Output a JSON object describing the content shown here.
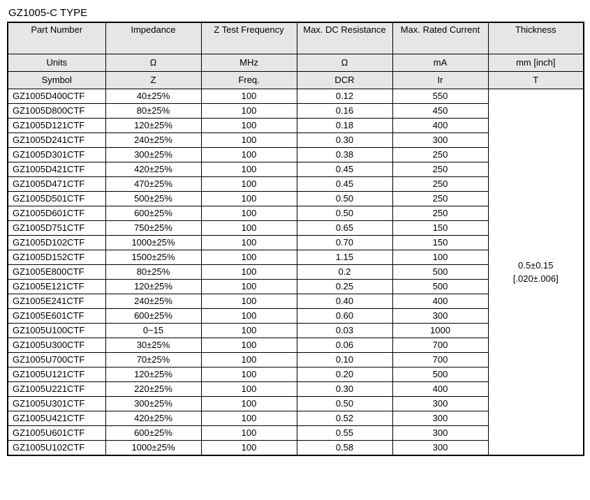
{
  "title": "GZ1005-C TYPE",
  "headers": {
    "col1": "Part Number",
    "col2": "Impedance",
    "col3": "Z Test Frequency",
    "col4": "Max. DC Resistance",
    "col5": "Max. Rated Current",
    "col6": "Thickness"
  },
  "units": {
    "label": "Units",
    "col2": "Ω",
    "col3": "MHz",
    "col4": "Ω",
    "col5": "mA",
    "col6": "mm [inch]"
  },
  "symbols": {
    "label": "Symbol",
    "col2": "Z",
    "col3": "Freq.",
    "col4": "DCR",
    "col5": "Ir",
    "col6": "T"
  },
  "thickness": {
    "line1": "0.5±0.15",
    "line2": "[.020±.006]"
  },
  "rows": [
    {
      "pn": "GZ1005D400CTF",
      "imp": "40±25%",
      "freq": "100",
      "dcr": "0.12",
      "ir": "550"
    },
    {
      "pn": "GZ1005D800CTF",
      "imp": "80±25%",
      "freq": "100",
      "dcr": "0.16",
      "ir": "450"
    },
    {
      "pn": "GZ1005D121CTF",
      "imp": "120±25%",
      "freq": "100",
      "dcr": "0.18",
      "ir": "400"
    },
    {
      "pn": "GZ1005D241CTF",
      "imp": "240±25%",
      "freq": "100",
      "dcr": "0.30",
      "ir": "300"
    },
    {
      "pn": "GZ1005D301CTF",
      "imp": "300±25%",
      "freq": "100",
      "dcr": "0.38",
      "ir": "250"
    },
    {
      "pn": "GZ1005D421CTF",
      "imp": "420±25%",
      "freq": "100",
      "dcr": "0.45",
      "ir": "250"
    },
    {
      "pn": "GZ1005D471CTF",
      "imp": "470±25%",
      "freq": "100",
      "dcr": "0.45",
      "ir": "250"
    },
    {
      "pn": "GZ1005D501CTF",
      "imp": "500±25%",
      "freq": "100",
      "dcr": "0.50",
      "ir": "250"
    },
    {
      "pn": "GZ1005D601CTF",
      "imp": "600±25%",
      "freq": "100",
      "dcr": "0.50",
      "ir": "250"
    },
    {
      "pn": "GZ1005D751CTF",
      "imp": "750±25%",
      "freq": "100",
      "dcr": "0.65",
      "ir": "150"
    },
    {
      "pn": "GZ1005D102CTF",
      "imp": "1000±25%",
      "freq": "100",
      "dcr": "0.70",
      "ir": "150"
    },
    {
      "pn": "GZ1005D152CTF",
      "imp": "1500±25%",
      "freq": "100",
      "dcr": "1.15",
      "ir": "100"
    },
    {
      "pn": "GZ1005E800CTF",
      "imp": "80±25%",
      "freq": "100",
      "dcr": "0.2",
      "ir": "500"
    },
    {
      "pn": "GZ1005E121CTF",
      "imp": "120±25%",
      "freq": "100",
      "dcr": "0.25",
      "ir": "500"
    },
    {
      "pn": "GZ1005E241CTF",
      "imp": "240±25%",
      "freq": "100",
      "dcr": "0.40",
      "ir": "400"
    },
    {
      "pn": "GZ1005E601CTF",
      "imp": "600±25%",
      "freq": "100",
      "dcr": "0.60",
      "ir": "300"
    },
    {
      "pn": "GZ1005U100CTF",
      "imp": "0~15",
      "freq": "100",
      "dcr": "0.03",
      "ir": "1000"
    },
    {
      "pn": "GZ1005U300CTF",
      "imp": "30±25%",
      "freq": "100",
      "dcr": "0.06",
      "ir": "700"
    },
    {
      "pn": "GZ1005U700CTF",
      "imp": "70±25%",
      "freq": "100",
      "dcr": "0.10",
      "ir": "700"
    },
    {
      "pn": "GZ1005U121CTF",
      "imp": "120±25%",
      "freq": "100",
      "dcr": "0.20",
      "ir": "500"
    },
    {
      "pn": "GZ1005U221CTF",
      "imp": "220±25%",
      "freq": "100",
      "dcr": "0.30",
      "ir": "400"
    },
    {
      "pn": "GZ1005U301CTF",
      "imp": "300±25%",
      "freq": "100",
      "dcr": "0.50",
      "ir": "300"
    },
    {
      "pn": "GZ1005U421CTF",
      "imp": "420±25%",
      "freq": "100",
      "dcr": "0.52",
      "ir": "300"
    },
    {
      "pn": "GZ1005U601CTF",
      "imp": "600±25%",
      "freq": "100",
      "dcr": "0.55",
      "ir": "300"
    },
    {
      "pn": "GZ1005U102CTF",
      "imp": "1000±25%",
      "freq": "100",
      "dcr": "0.58",
      "ir": "300"
    }
  ]
}
